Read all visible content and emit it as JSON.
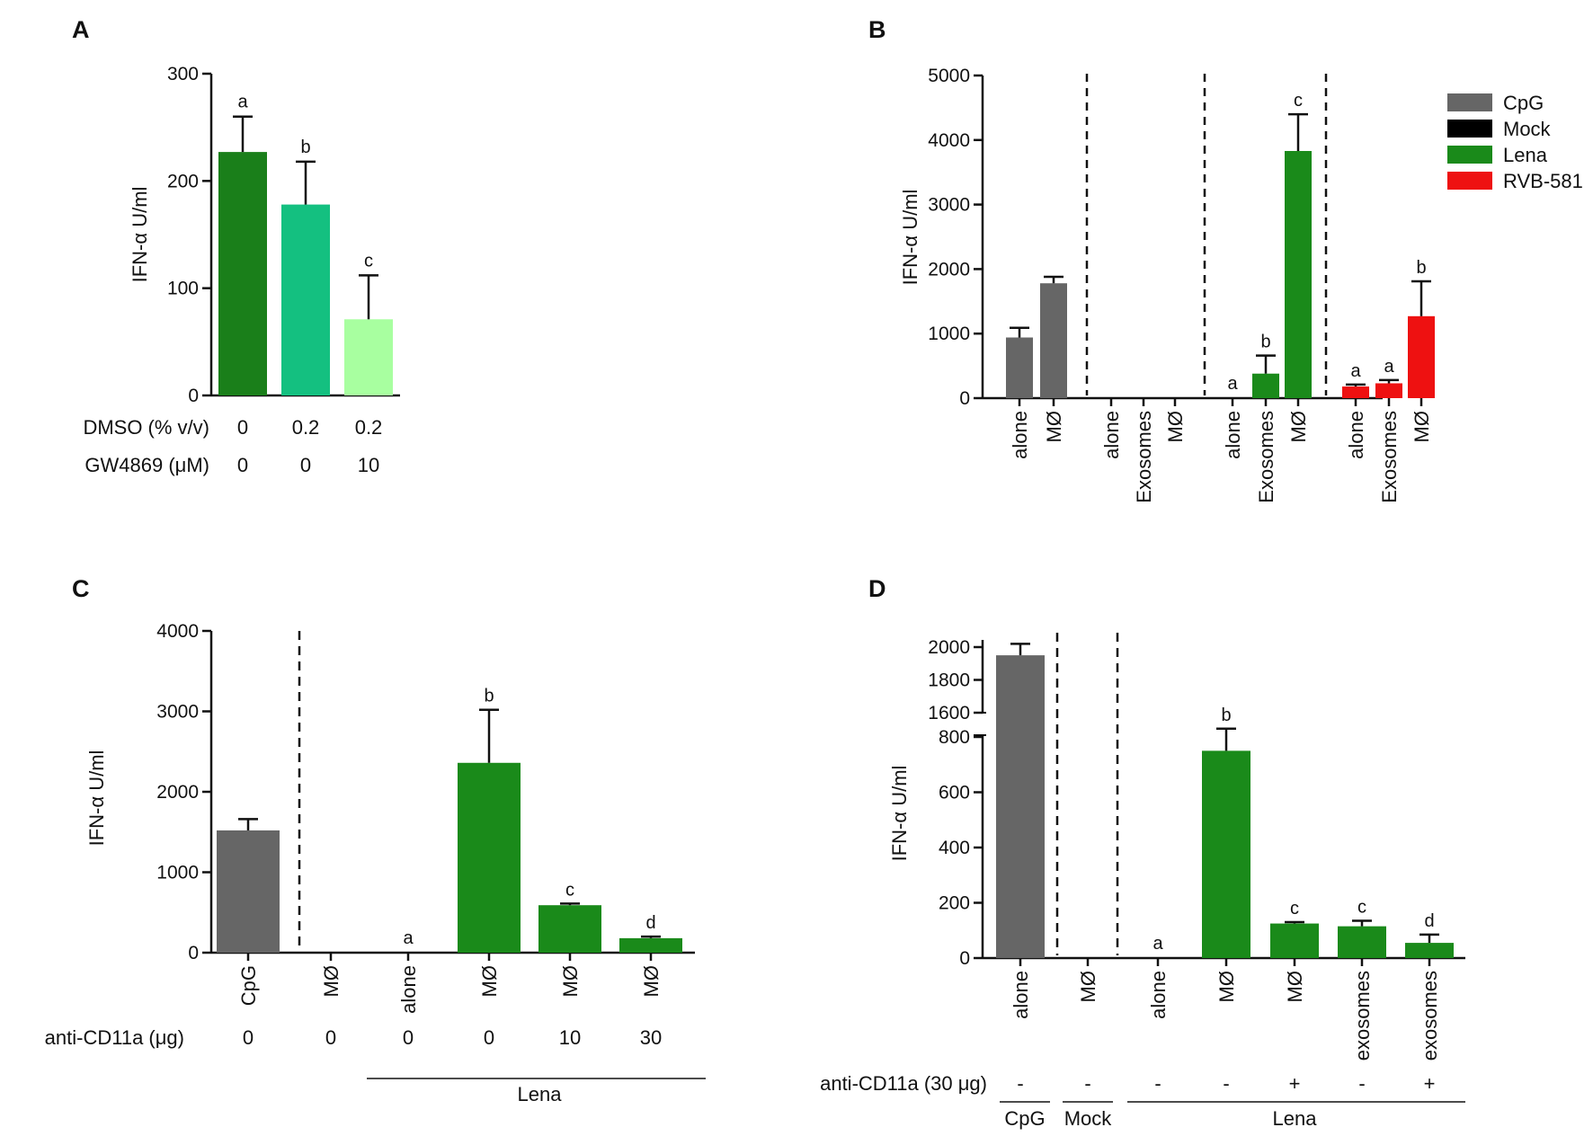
{
  "chart_data": [
    {
      "panel": "A",
      "type": "bar",
      "ylabel": "IFN-α U/ml",
      "ylim": [
        0,
        300
      ],
      "yticks": [
        0,
        100,
        200,
        300
      ],
      "categories": [
        "",
        "",
        ""
      ],
      "values": [
        227,
        178,
        71
      ],
      "errors": [
        33,
        40,
        41
      ],
      "colors": [
        "#1a7f1a",
        "#14c080",
        "#a8ffa0"
      ],
      "labels": [
        "a",
        "b",
        "c"
      ],
      "rows": [
        {
          "label": "DMSO (% v/v)",
          "values": [
            "0",
            "0.2",
            "0.2"
          ]
        },
        {
          "label": "GW4869 (μM)",
          "values": [
            "0",
            "0",
            "10"
          ]
        }
      ]
    },
    {
      "panel": "B",
      "type": "bar",
      "ylabel": "IFN-α U/ml",
      "ylim": [
        0,
        5000
      ],
      "yticks": [
        0,
        1000,
        2000,
        3000,
        4000,
        5000
      ],
      "categories": [
        "alone",
        "MØ",
        "alone",
        "Exosomes",
        "MØ",
        "alone",
        "Exosomes",
        "MØ",
        "alone",
        "Exosomes",
        "MØ"
      ],
      "groups": [
        "CpG",
        "CpG",
        "Mock",
        "Mock",
        "Mock",
        "Lena",
        "Lena",
        "Lena",
        "RVB-581",
        "RVB-581",
        "RVB-581"
      ],
      "values": [
        940,
        1780,
        0,
        0,
        0,
        0,
        380,
        3830,
        180,
        230,
        1270
      ],
      "errors": [
        150,
        100,
        0,
        0,
        0,
        0,
        280,
        570,
        30,
        50,
        540
      ],
      "labels": [
        "",
        "",
        "",
        "",
        "",
        "a",
        "b",
        "c",
        "a",
        "a",
        "b"
      ],
      "legend": [
        {
          "name": "CpG",
          "color": "#666666"
        },
        {
          "name": "Mock",
          "color": "#000000"
        },
        {
          "name": "Lena",
          "color": "#1a8a1a"
        },
        {
          "name": "RVB-581",
          "color": "#ee1111"
        }
      ]
    },
    {
      "panel": "C",
      "type": "bar",
      "ylabel": "IFN-α U/ml",
      "ylim": [
        0,
        4000
      ],
      "yticks": [
        0,
        1000,
        2000,
        3000,
        4000
      ],
      "categories": [
        "CpG",
        "MØ",
        "alone",
        "MØ",
        "MØ",
        "MØ"
      ],
      "values": [
        1520,
        0,
        0,
        2360,
        590,
        180
      ],
      "errors": [
        140,
        0,
        0,
        660,
        20,
        20
      ],
      "labels": [
        "",
        "",
        "a",
        "b",
        "c",
        "d"
      ],
      "rows": [
        {
          "label": "anti-CD11a (μg)",
          "values": [
            "0",
            "0",
            "0",
            "0",
            "10",
            "30"
          ]
        }
      ],
      "group_label": "Lena"
    },
    {
      "panel": "D",
      "type": "bar",
      "ylabel": "IFN-α U/ml",
      "upper_ticks": [
        1600,
        1800,
        2000
      ],
      "lower_ticks": [
        0,
        200,
        400,
        600,
        800
      ],
      "categories": [
        "alone",
        "MØ",
        "alone",
        "MØ",
        "MØ",
        "exosomes",
        "exosomes"
      ],
      "values": [
        1950,
        0,
        0,
        750,
        125,
        115,
        55
      ],
      "errors": [
        70,
        0,
        0,
        80,
        5,
        20,
        30
      ],
      "labels": [
        "",
        "",
        "a",
        "b",
        "c",
        "c",
        "d"
      ],
      "rows": [
        {
          "label": "anti-CD11a (30 μg)",
          "values": [
            "-",
            "-",
            "-",
            "-",
            "+",
            "-",
            "+"
          ]
        }
      ],
      "group_labels": [
        "CpG",
        "Mock",
        "Lena"
      ]
    }
  ]
}
